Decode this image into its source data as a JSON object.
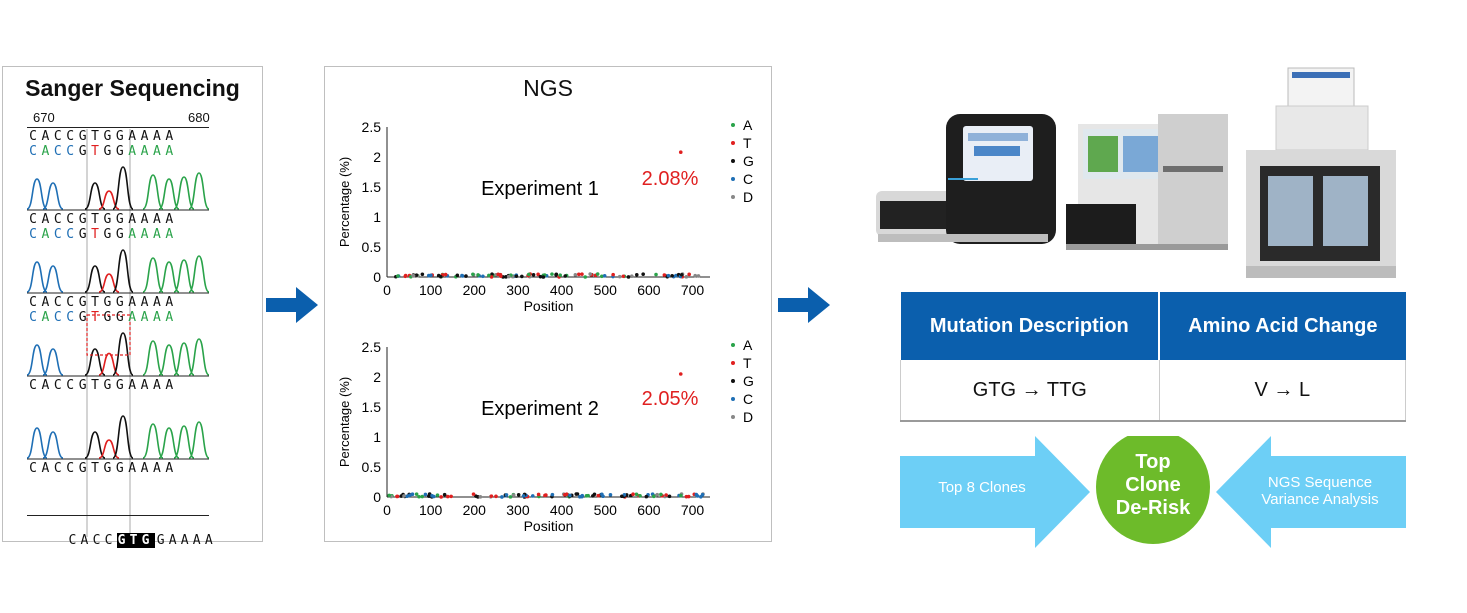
{
  "sanger": {
    "title": "Sanger Sequencing",
    "pos_start": "670",
    "pos_end": "680",
    "seq": "CACCGTGGAAAA",
    "bottom_left": "CACC",
    "bottom_highlight": "GTG",
    "bottom_right": "GAAAA"
  },
  "ngs": {
    "title": "NGS",
    "legend": [
      "A",
      "T",
      "G",
      "C",
      "D"
    ],
    "legend_colors": [
      "#2aa34a",
      "#e02020",
      "#111111",
      "#1f6fb5",
      "#888888"
    ],
    "experiments": [
      {
        "label": "Experiment 1",
        "peak_label": "2.08%"
      },
      {
        "label": "Experiment 2",
        "peak_label": "2.05%"
      }
    ]
  },
  "chart_data": [
    {
      "type": "scatter",
      "title": "Experiment 1",
      "xlabel": "Position",
      "ylabel": "Percentage (%)",
      "xlim": [
        0,
        740
      ],
      "ylim": [
        0,
        2.5
      ],
      "xticks": [
        "0",
        "100",
        "200",
        "300",
        "400",
        "500",
        "600",
        "700"
      ],
      "yticks": [
        "0",
        "0.5",
        "1",
        "1.5",
        "2",
        "2.5"
      ],
      "annotation": "2.08%",
      "series": [
        {
          "name": "T",
          "x": [
            673
          ],
          "y": [
            2.08
          ],
          "note": "peak"
        },
        {
          "name": "A",
          "x": [],
          "y": []
        },
        {
          "name": "G",
          "x": [],
          "y": []
        },
        {
          "name": "C",
          "x": [],
          "y": []
        },
        {
          "name": "D",
          "x": [],
          "y": []
        }
      ],
      "baseline_range": [
        0,
        0.05
      ]
    },
    {
      "type": "scatter",
      "title": "Experiment 2",
      "xlabel": "Position",
      "ylabel": "Percentage (%)",
      "xlim": [
        0,
        740
      ],
      "ylim": [
        0,
        2.5
      ],
      "xticks": [
        "0",
        "100",
        "200",
        "300",
        "400",
        "500",
        "600",
        "700"
      ],
      "yticks": [
        "0",
        "0.5",
        "1",
        "1.5",
        "2",
        "2.5"
      ],
      "annotation": "2.05%",
      "series": [
        {
          "name": "T",
          "x": [
            673
          ],
          "y": [
            2.05
          ],
          "note": "peak"
        },
        {
          "name": "A",
          "x": [],
          "y": []
        },
        {
          "name": "G",
          "x": [],
          "y": []
        },
        {
          "name": "C",
          "x": [],
          "y": []
        },
        {
          "name": "D",
          "x": [],
          "y": []
        }
      ],
      "baseline_range": [
        0,
        0.05
      ]
    }
  ],
  "table": {
    "headers": [
      "Mutation Description",
      "Amino Acid Change"
    ],
    "row": [
      "GTG → TTG",
      "V → L"
    ]
  },
  "flow": {
    "left": "Top 8 Clones",
    "center_lines": [
      "Top",
      "Clone",
      "De-Risk"
    ],
    "right_lines": [
      "NGS Sequence",
      "Variance Analysis"
    ]
  },
  "colors": {
    "blue": "#0b5fad",
    "light_blue": "#6dcff6",
    "green": "#6dbb2a",
    "red": "#e02020"
  }
}
